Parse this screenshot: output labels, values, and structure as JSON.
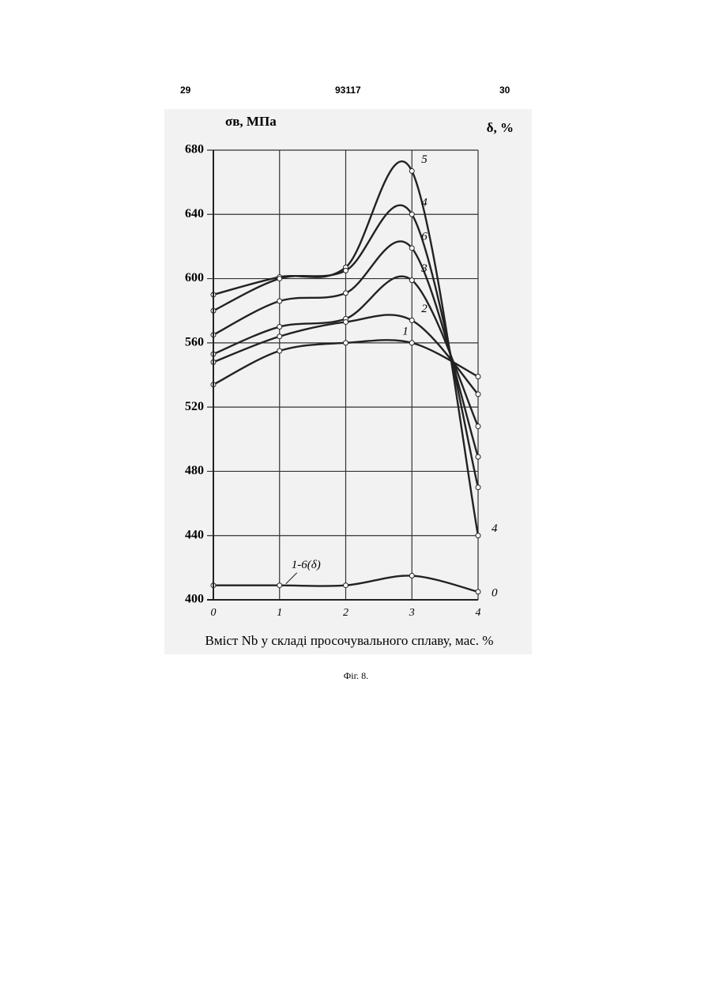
{
  "header": {
    "left": "29",
    "center": "93117",
    "right": "30"
  },
  "chart_data": {
    "type": "line",
    "ylabel": "σв, МПа",
    "y2label": "δ, %",
    "xlabel": "Вміст Nb у складі просочувального сплаву, мас. %",
    "x": [
      0,
      1,
      2,
      3,
      4
    ],
    "xlim": [
      0,
      4
    ],
    "xticks": [
      0,
      1,
      2,
      3,
      4
    ],
    "ylim": [
      400,
      680
    ],
    "yticks": [
      400,
      440,
      480,
      520,
      560,
      600,
      640,
      680
    ],
    "y2lim": [
      0,
      28
    ],
    "y2ticks": [
      0,
      4
    ],
    "grid": true,
    "series": [
      {
        "name": "5",
        "color": "#222",
        "values": [
          590,
          601,
          607,
          667,
          440
        ]
      },
      {
        "name": "4",
        "color": "#222",
        "values": [
          580,
          600,
          605,
          640,
          470
        ]
      },
      {
        "name": "6",
        "color": "#222",
        "values": [
          565,
          586,
          591,
          619,
          489
        ]
      },
      {
        "name": "3",
        "color": "#222",
        "values": [
          553,
          570,
          575,
          599,
          508
        ]
      },
      {
        "name": "2",
        "color": "#222",
        "values": [
          548,
          564,
          573,
          574,
          528
        ]
      },
      {
        "name": "1",
        "color": "#222",
        "values": [
          534,
          555,
          560,
          560,
          539
        ]
      },
      {
        "name": "1-6(δ)",
        "color": "#222",
        "axis": "y2",
        "values": [
          0.9,
          0.9,
          0.9,
          1.5,
          0.5
        ]
      }
    ]
  },
  "caption": "Фіг. 8."
}
